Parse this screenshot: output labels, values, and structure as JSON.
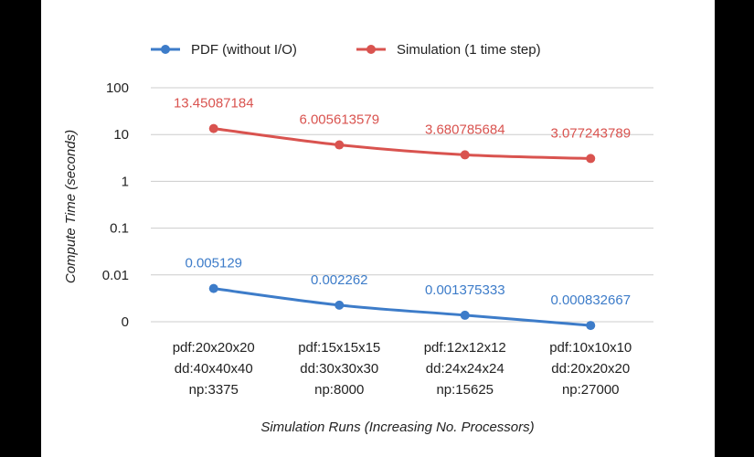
{
  "chart_data": {
    "type": "line",
    "title": "",
    "xlabel": "Simulation Runs (Increasing No. Processors)",
    "ylabel": "Compute Time (seconds)",
    "yscale": "log",
    "ylim": [
      0.001,
      100
    ],
    "ytick_values": [
      0.001,
      0.01,
      0.1,
      1,
      10,
      100
    ],
    "ytick_labels": [
      "0",
      "0.01",
      "0.1",
      "1",
      "10",
      "100"
    ],
    "grid": true,
    "legend_position": "top",
    "categories": [
      [
        "pdf:20x20x20",
        "dd:40x40x40",
        "np:3375"
      ],
      [
        "pdf:15x15x15",
        "dd:30x30x30",
        "np:8000"
      ],
      [
        "pdf:12x12x12",
        "dd:24x24x24",
        "np:15625"
      ],
      [
        "pdf:10x10x10",
        "dd:20x20x20",
        "np:27000"
      ]
    ],
    "series": [
      {
        "name": "PDF (without I/O)",
        "color": "#3d7cc9",
        "values": [
          0.005129,
          0.002262,
          0.001375333,
          0.000832667
        ],
        "labels": [
          "0.005129",
          "0.002262",
          "0.001375333",
          "0.000832667"
        ]
      },
      {
        "name": "Simulation (1 time step)",
        "color": "#d9534f",
        "values": [
          13.45087184,
          6.005613579,
          3.680785684,
          3.077243789
        ],
        "labels": [
          "13.45087184",
          "6.005613579",
          "3.680785684",
          "3.077243789"
        ]
      }
    ]
  }
}
